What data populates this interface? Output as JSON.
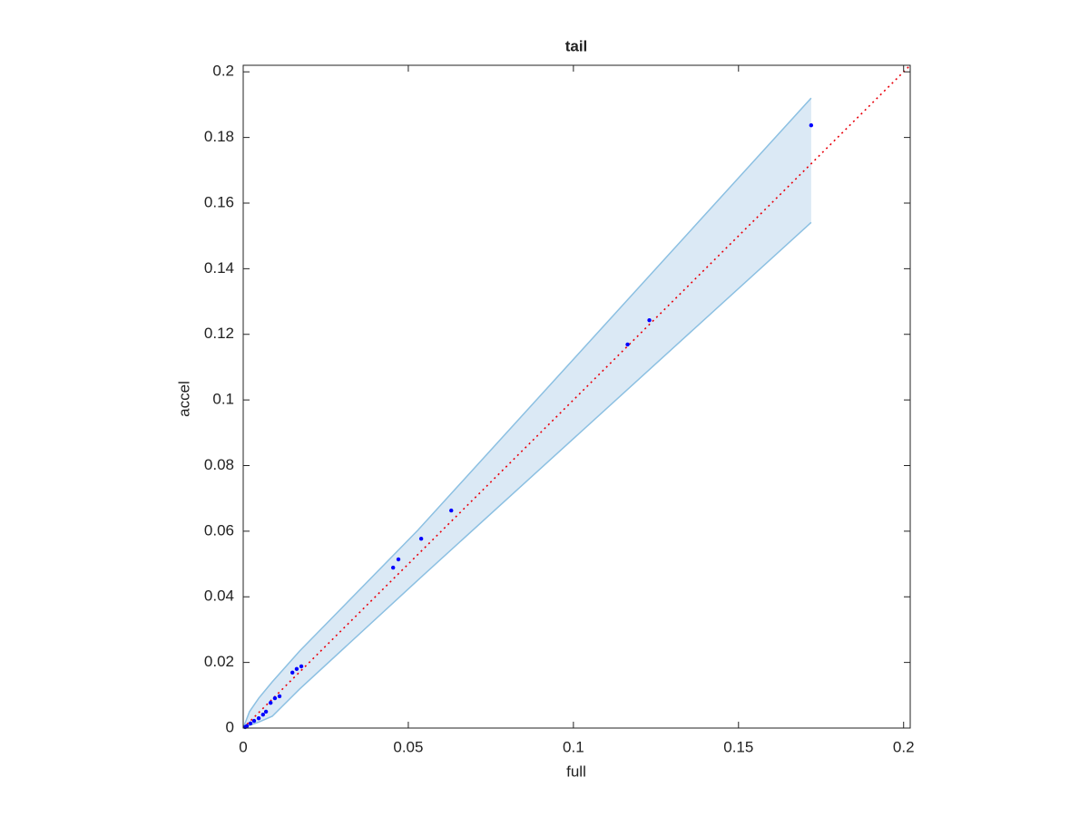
{
  "chart_data": {
    "type": "scatter",
    "title": "tail",
    "xlabel": "full",
    "ylabel": "accel",
    "xlim": [
      0,
      0.202
    ],
    "ylim": [
      0,
      0.202
    ],
    "xticks": [
      0,
      0.05,
      0.1,
      0.15,
      0.2
    ],
    "yticks": [
      0,
      0.02,
      0.04,
      0.06,
      0.08,
      0.1,
      0.12,
      0.14,
      0.16,
      0.18,
      0.2
    ],
    "band": {
      "fill": "#dbe9f5",
      "color": "#8cc0e2",
      "x": [
        0,
        0.0019,
        0.0047,
        0.0088,
        0.0171,
        0.0528,
        0.172
      ],
      "upper": [
        0,
        0.005,
        0.0091,
        0.0141,
        0.0235,
        0.0602,
        0.192
      ],
      "lower": [
        0,
        0.0008,
        0.0018,
        0.0036,
        0.0119,
        0.045,
        0.1541
      ]
    },
    "reference": {
      "color": "#e8000b",
      "x": [
        0,
        0.202
      ],
      "values": [
        0,
        0.202
      ]
    },
    "series": [
      {
        "color": "#0000ff",
        "x": [
          0.172,
          0.123,
          0.1164,
          0.063,
          0.0539,
          0.047,
          0.0454,
          0.0176,
          0.0162,
          0.0149,
          0.011,
          0.0096,
          0.0083,
          0.0069,
          0.006,
          0.0047,
          0.0033,
          0.0022,
          0.0011,
          0.0006
        ],
        "values": [
          0.1837,
          0.1243,
          0.1169,
          0.0663,
          0.0577,
          0.0514,
          0.0489,
          0.0188,
          0.018,
          0.0169,
          0.0097,
          0.0091,
          0.0077,
          0.005,
          0.0041,
          0.003,
          0.0022,
          0.0014,
          0.0006,
          0.0003
        ]
      }
    ]
  }
}
